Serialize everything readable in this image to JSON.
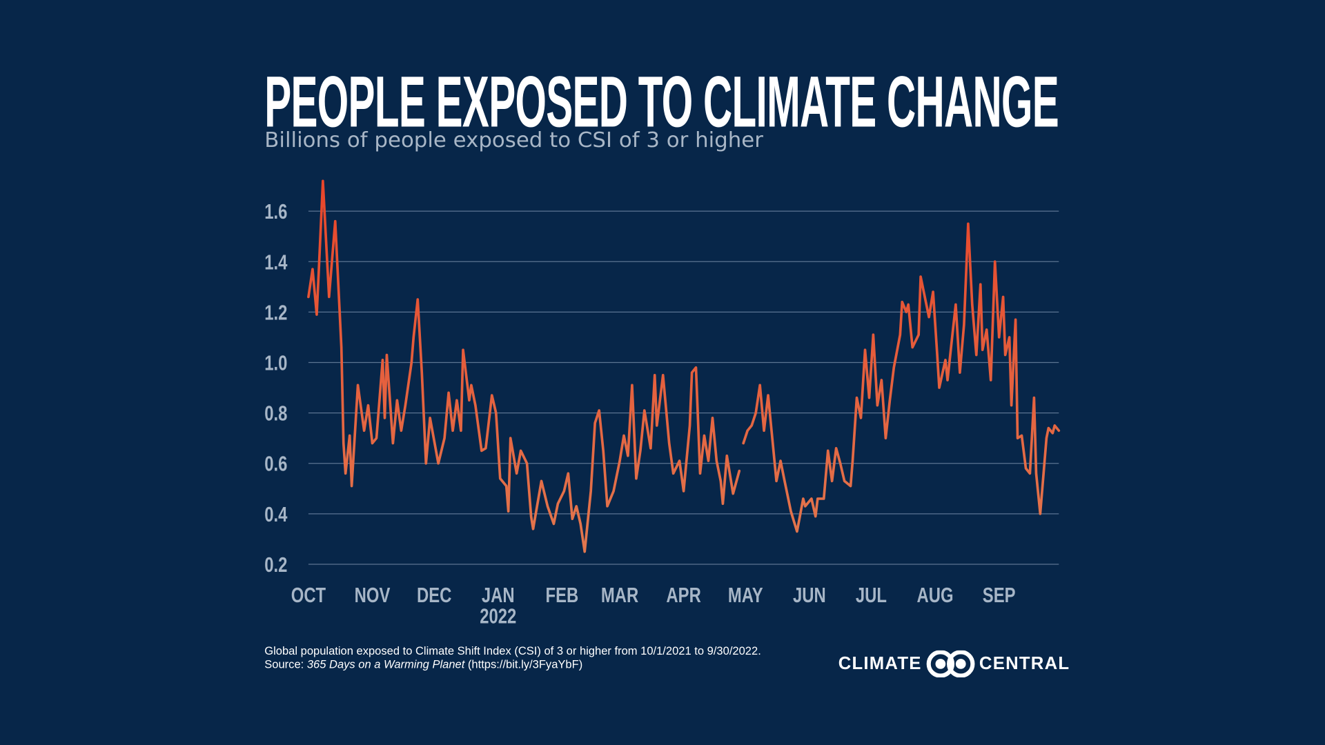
{
  "header": {
    "title": "PEOPLE EXPOSED TO CLIMATE CHANGE",
    "subtitle": "Billions of people exposed to CSI of 3 or higher"
  },
  "footer": {
    "line1": "Global population exposed to Climate Shift Index (CSI) of 3 or higher from 10/1/2021 to 9/30/2022.",
    "source_prefix": "Source: ",
    "source_title": "365 Days on a Warming Planet",
    "source_link": " (https://bit.ly/3FyaYbF)"
  },
  "logo": {
    "left": "CLIMATE",
    "right": "CENTRAL",
    "icon": "interlocking-circles-icon"
  },
  "colors": {
    "background": "#072649",
    "line_high": "#e8452a",
    "line_low": "#e2784f",
    "grid": "#5b7492",
    "tick_text": "#a7b6c7"
  },
  "chart_data": {
    "type": "line",
    "title": "PEOPLE EXPOSED TO CLIMATE CHANGE",
    "subtitle": "Billions of people exposed to CSI of 3 or higher",
    "xlabel": "",
    "ylabel": "",
    "ylim": [
      0.2,
      1.6
    ],
    "xlim": [
      "2021-10-01",
      "2022-09-30"
    ],
    "grid": true,
    "yticks": [
      "0.2",
      "0.4",
      "0.6",
      "0.8",
      "1.0",
      "1.2",
      "1.4",
      "1.6"
    ],
    "xticks": [
      {
        "date": "2021-10-01",
        "label": "OCT"
      },
      {
        "date": "2021-11-01",
        "label": "NOV"
      },
      {
        "date": "2021-12-01",
        "label": "DEC"
      },
      {
        "date": "2022-01-01",
        "label": "JAN",
        "sublabel": "2022"
      },
      {
        "date": "2022-02-01",
        "label": "FEB"
      },
      {
        "date": "2022-03-01",
        "label": "MAR"
      },
      {
        "date": "2022-04-01",
        "label": "APR"
      },
      {
        "date": "2022-05-01",
        "label": "MAY"
      },
      {
        "date": "2022-06-01",
        "label": "JUN"
      },
      {
        "date": "2022-07-01",
        "label": "JUL"
      },
      {
        "date": "2022-08-01",
        "label": "AUG"
      },
      {
        "date": "2022-09-01",
        "label": "SEP"
      }
    ],
    "points": [
      [
        "2021-10-01",
        1.26
      ],
      [
        "2021-10-03",
        1.37
      ],
      [
        "2021-10-05",
        1.19
      ],
      [
        "2021-10-06",
        1.36
      ],
      [
        "2021-10-08",
        1.72
      ],
      [
        "2021-10-11",
        1.26
      ],
      [
        "2021-10-14",
        1.56
      ],
      [
        "2021-10-17",
        1.06
      ],
      [
        "2021-10-18",
        0.68
      ],
      [
        "2021-10-19",
        0.56
      ],
      [
        "2021-10-21",
        0.71
      ],
      [
        "2021-10-22",
        0.51
      ],
      [
        "2021-10-25",
        0.91
      ],
      [
        "2021-10-28",
        0.73
      ],
      [
        "2021-10-30",
        0.83
      ],
      [
        "2021-11-01",
        0.68
      ],
      [
        "2021-11-03",
        0.7
      ],
      [
        "2021-11-06",
        1.01
      ],
      [
        "2021-11-07",
        0.78
      ],
      [
        "2021-11-08",
        1.03
      ],
      [
        "2021-11-11",
        0.68
      ],
      [
        "2021-11-13",
        0.85
      ],
      [
        "2021-11-15",
        0.73
      ],
      [
        "2021-11-17",
        0.83
      ],
      [
        "2021-11-20",
        1.0
      ],
      [
        "2021-11-21",
        1.1
      ],
      [
        "2021-11-23",
        1.25
      ],
      [
        "2021-11-25",
        0.96
      ],
      [
        "2021-11-27",
        0.6
      ],
      [
        "2021-11-29",
        0.78
      ],
      [
        "2021-12-03",
        0.6
      ],
      [
        "2021-12-06",
        0.7
      ],
      [
        "2021-12-08",
        0.88
      ],
      [
        "2021-12-10",
        0.73
      ],
      [
        "2021-12-12",
        0.85
      ],
      [
        "2021-12-14",
        0.73
      ],
      [
        "2021-12-15",
        1.05
      ],
      [
        "2021-12-18",
        0.85
      ],
      [
        "2021-12-19",
        0.91
      ],
      [
        "2021-12-21",
        0.83
      ],
      [
        "2021-12-24",
        0.65
      ],
      [
        "2021-12-26",
        0.66
      ],
      [
        "2021-12-29",
        0.87
      ],
      [
        "2021-12-31",
        0.8
      ],
      [
        "2022-01-02",
        0.54
      ],
      [
        "2022-01-05",
        0.51
      ],
      [
        "2022-01-06",
        0.41
      ],
      [
        "2022-01-07",
        0.7
      ],
      [
        "2022-01-10",
        0.56
      ],
      [
        "2022-01-12",
        0.65
      ],
      [
        "2022-01-15",
        0.6
      ],
      [
        "2022-01-17",
        0.39
      ],
      [
        "2022-01-18",
        0.34
      ],
      [
        "2022-01-22",
        0.53
      ],
      [
        "2022-01-25",
        0.43
      ],
      [
        "2022-01-28",
        0.36
      ],
      [
        "2022-01-30",
        0.44
      ],
      [
        "2022-02-02",
        0.49
      ],
      [
        "2022-02-04",
        0.56
      ],
      [
        "2022-02-06",
        0.38
      ],
      [
        "2022-02-08",
        0.43
      ],
      [
        "2022-02-10",
        0.36
      ],
      [
        "2022-02-12",
        0.25
      ],
      [
        "2022-02-15",
        0.49
      ],
      [
        "2022-02-17",
        0.76
      ],
      [
        "2022-02-19",
        0.81
      ],
      [
        "2022-02-21",
        0.65
      ],
      [
        "2022-02-23",
        0.43
      ],
      [
        "2022-02-26",
        0.49
      ],
      [
        "2022-03-01",
        0.61
      ],
      [
        "2022-03-03",
        0.71
      ],
      [
        "2022-03-05",
        0.63
      ],
      [
        "2022-03-07",
        0.91
      ],
      [
        "2022-03-09",
        0.54
      ],
      [
        "2022-03-11",
        0.65
      ],
      [
        "2022-03-13",
        0.81
      ],
      [
        "2022-03-16",
        0.66
      ],
      [
        "2022-03-18",
        0.95
      ],
      [
        "2022-03-19",
        0.75
      ],
      [
        "2022-03-22",
        0.95
      ],
      [
        "2022-03-25",
        0.68
      ],
      [
        "2022-03-27",
        0.56
      ],
      [
        "2022-03-30",
        0.61
      ],
      [
        "2022-04-01",
        0.49
      ],
      [
        "2022-04-04",
        0.75
      ],
      [
        "2022-04-05",
        0.96
      ],
      [
        "2022-04-07",
        0.98
      ],
      [
        "2022-04-09",
        0.56
      ],
      [
        "2022-04-11",
        0.71
      ],
      [
        "2022-04-13",
        0.61
      ],
      [
        "2022-04-15",
        0.78
      ],
      [
        "2022-04-17",
        0.61
      ],
      [
        "2022-04-19",
        0.53
      ],
      [
        "2022-04-20",
        0.44
      ],
      [
        "2022-04-22",
        0.63
      ],
      [
        "2022-04-25",
        0.48
      ],
      [
        "2022-04-28",
        0.57
      ],
      [
        "2022-04-29",
        null
      ],
      [
        "2022-04-30",
        0.68
      ],
      [
        "2022-05-02",
        0.73
      ],
      [
        "2022-05-04",
        0.75
      ],
      [
        "2022-05-06",
        0.8
      ],
      [
        "2022-05-08",
        0.91
      ],
      [
        "2022-05-10",
        0.73
      ],
      [
        "2022-05-12",
        0.87
      ],
      [
        "2022-05-14",
        0.7
      ],
      [
        "2022-05-16",
        0.53
      ],
      [
        "2022-05-18",
        0.61
      ],
      [
        "2022-05-20",
        0.53
      ],
      [
        "2022-05-23",
        0.41
      ],
      [
        "2022-05-26",
        0.33
      ],
      [
        "2022-05-29",
        0.46
      ],
      [
        "2022-05-30",
        0.43
      ],
      [
        "2022-06-02",
        0.46
      ],
      [
        "2022-06-04",
        0.39
      ],
      [
        "2022-06-05",
        0.46
      ],
      [
        "2022-06-08",
        0.46
      ],
      [
        "2022-06-10",
        0.65
      ],
      [
        "2022-06-12",
        0.53
      ],
      [
        "2022-06-14",
        0.66
      ],
      [
        "2022-06-16",
        0.6
      ],
      [
        "2022-06-18",
        0.53
      ],
      [
        "2022-06-21",
        0.51
      ],
      [
        "2022-06-22",
        0.61
      ],
      [
        "2022-06-24",
        0.86
      ],
      [
        "2022-06-26",
        0.78
      ],
      [
        "2022-06-28",
        1.05
      ],
      [
        "2022-06-30",
        0.86
      ],
      [
        "2022-07-02",
        1.11
      ],
      [
        "2022-07-04",
        0.83
      ],
      [
        "2022-07-06",
        0.93
      ],
      [
        "2022-07-08",
        0.7
      ],
      [
        "2022-07-10",
        0.85
      ],
      [
        "2022-07-12",
        0.98
      ],
      [
        "2022-07-15",
        1.11
      ],
      [
        "2022-07-16",
        1.24
      ],
      [
        "2022-07-18",
        1.2
      ],
      [
        "2022-07-19",
        1.23
      ],
      [
        "2022-07-21",
        1.06
      ],
      [
        "2022-07-24",
        1.11
      ],
      [
        "2022-07-25",
        1.34
      ],
      [
        "2022-07-27",
        1.26
      ],
      [
        "2022-07-29",
        1.18
      ],
      [
        "2022-07-31",
        1.28
      ],
      [
        "2022-08-02",
        1.03
      ],
      [
        "2022-08-03",
        0.9
      ],
      [
        "2022-08-06",
        1.01
      ],
      [
        "2022-08-07",
        0.93
      ],
      [
        "2022-08-09",
        1.08
      ],
      [
        "2022-08-11",
        1.23
      ],
      [
        "2022-08-13",
        0.96
      ],
      [
        "2022-08-15",
        1.15
      ],
      [
        "2022-08-17",
        1.55
      ],
      [
        "2022-08-19",
        1.23
      ],
      [
        "2022-08-21",
        1.03
      ],
      [
        "2022-08-23",
        1.31
      ],
      [
        "2022-08-24",
        1.05
      ],
      [
        "2022-08-26",
        1.13
      ],
      [
        "2022-08-28",
        0.93
      ],
      [
        "2022-08-30",
        1.4
      ],
      [
        "2022-09-01",
        1.1
      ],
      [
        "2022-09-03",
        1.26
      ],
      [
        "2022-09-04",
        1.03
      ],
      [
        "2022-09-06",
        1.1
      ],
      [
        "2022-09-07",
        0.83
      ],
      [
        "2022-09-09",
        1.17
      ],
      [
        "2022-09-10",
        0.7
      ],
      [
        "2022-09-12",
        0.71
      ],
      [
        "2022-09-14",
        0.58
      ],
      [
        "2022-09-16",
        0.56
      ],
      [
        "2022-09-18",
        0.86
      ],
      [
        "2022-09-19",
        0.56
      ],
      [
        "2022-09-21",
        0.4
      ],
      [
        "2022-09-24",
        0.7
      ],
      [
        "2022-09-25",
        0.74
      ],
      [
        "2022-09-27",
        0.72
      ],
      [
        "2022-09-28",
        0.75
      ],
      [
        "2022-09-30",
        0.73
      ]
    ]
  }
}
